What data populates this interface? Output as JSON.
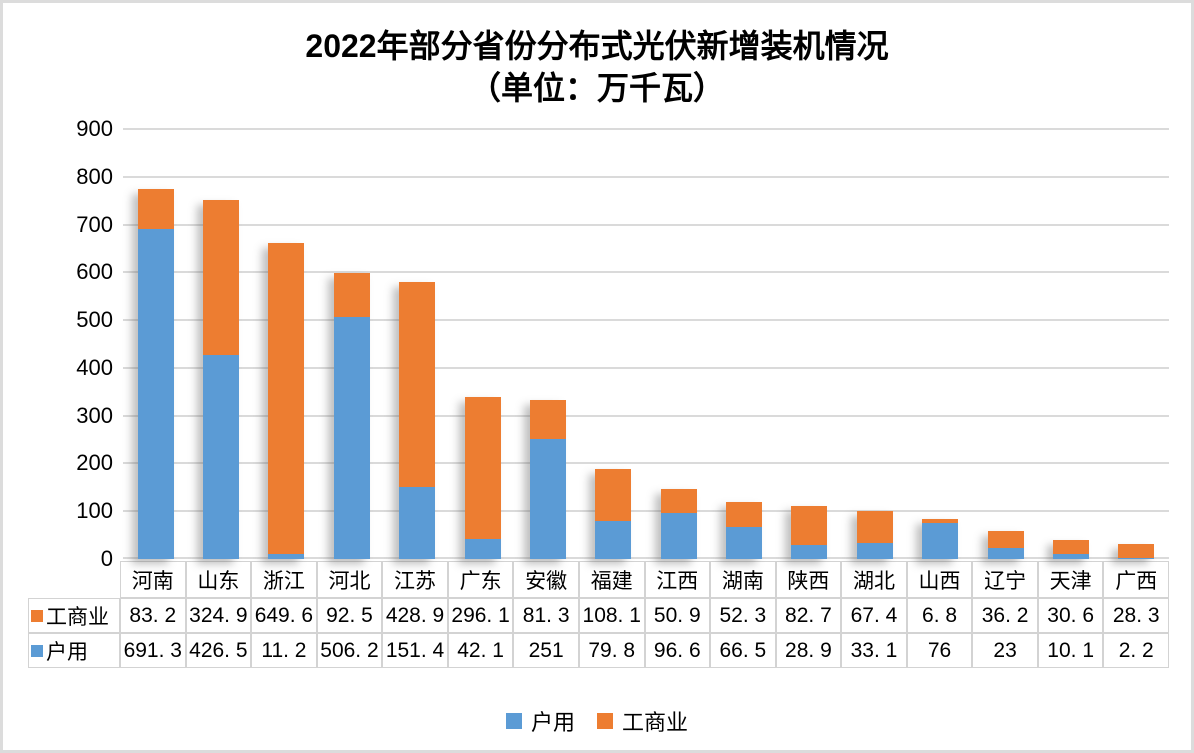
{
  "page": {
    "background": "#FFFFFF",
    "border_color": "#DCDCDC"
  },
  "header": {
    "title": "2022年部分省份分布式光伏新增装机情况",
    "subtitle": "（单位：万千瓦）"
  },
  "colors": {
    "residential_blue": "#5B9BD5",
    "commercial_orange": "#ED7D31",
    "gridline": "#DADADA",
    "table_border": "#D3D3D3"
  },
  "chart_data": {
    "type": "bar",
    "stacked": true,
    "title": "2022年部分省份分布式光伏新增装机情况",
    "subtitle": "（单位：万千瓦）",
    "unit": "万千瓦",
    "categories": [
      "河南",
      "山东",
      "浙江",
      "河北",
      "江苏",
      "广东",
      "安徽",
      "福建",
      "江西",
      "湖南",
      "陕西",
      "湖北",
      "山西",
      "辽宁",
      "天津",
      "广西"
    ],
    "series": [
      {
        "name": "户用",
        "color": "#5B9BD5",
        "values": [
          691.3,
          426.5,
          11.2,
          506.2,
          151.4,
          42.1,
          251,
          79.8,
          96.6,
          66.5,
          28.9,
          33.1,
          76,
          23,
          10.1,
          2.2
        ]
      },
      {
        "name": "工商业",
        "color": "#ED7D31",
        "values": [
          83.2,
          324.9,
          649.6,
          92.5,
          428.9,
          296.1,
          81.3,
          108.1,
          50.9,
          52.3,
          82.7,
          67.4,
          6.8,
          36.2,
          30.6,
          28.3
        ]
      }
    ],
    "xlabel": "",
    "ylabel": "",
    "ylim": [
      0,
      900
    ],
    "ytick_step": 100,
    "grid": true,
    "legend_position": "bottom"
  },
  "y_axis": {
    "tick_labels": [
      "900",
      "800",
      "700",
      "600",
      "500",
      "400",
      "300",
      "200",
      "100",
      "0"
    ]
  },
  "data_table": {
    "rows": [
      {
        "label": "工商业",
        "swatch_color": "#ED7D31",
        "values": [
          "83. 2",
          "324. 9",
          "649. 6",
          "92. 5",
          "428. 9",
          "296. 1",
          "81. 3",
          "108. 1",
          "50. 9",
          "52. 3",
          "82. 7",
          "67. 4",
          "6. 8",
          "36. 2",
          "30. 6",
          "28. 3"
        ]
      },
      {
        "label": "户用",
        "swatch_color": "#5B9BD5",
        "values": [
          "691. 3",
          "426. 5",
          "11. 2",
          "506. 2",
          "151. 4",
          "42. 1",
          "251",
          "79. 8",
          "96. 6",
          "66. 5",
          "28. 9",
          "33. 1",
          "76",
          "23",
          "10. 1",
          "2. 2"
        ]
      }
    ]
  },
  "legend": {
    "items": [
      {
        "label": "户用",
        "color": "#5B9BD5"
      },
      {
        "label": "工商业",
        "color": "#ED7D31"
      }
    ]
  }
}
